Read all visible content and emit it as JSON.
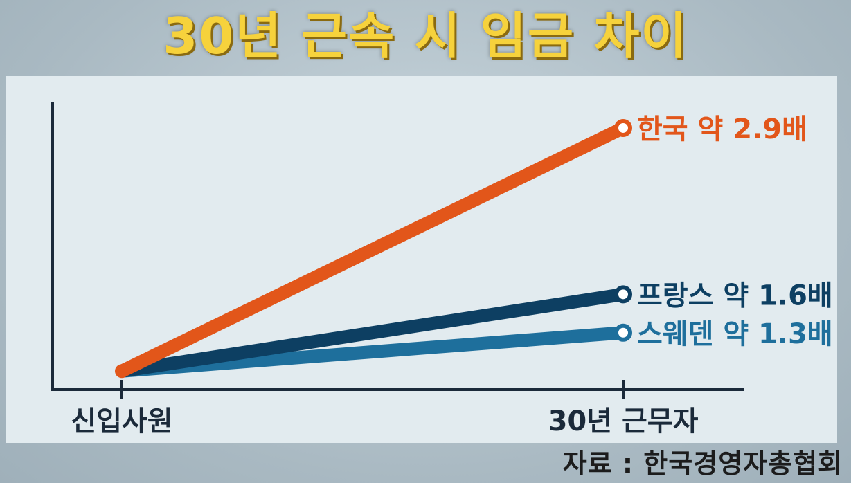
{
  "title": "30년 근속 시 임금 차이",
  "source": "자료 : 한국경영자총협회",
  "chart_data": {
    "type": "line",
    "categories": [
      "신입사원",
      "30년 근무자"
    ],
    "series": [
      {
        "name": "한국",
        "values": [
          1,
          2.9
        ],
        "label": "한국 약 2.9배",
        "color": "#e2561a"
      },
      {
        "name": "프랑스",
        "values": [
          1,
          1.6
        ],
        "label": "프랑스 약 1.6배",
        "color": "#0d3f62"
      },
      {
        "name": "스웨덴",
        "values": [
          1,
          1.3
        ],
        "label": "스웨덴 약 1.3배",
        "color": "#1e6f9c"
      }
    ],
    "ylim": [
      0.85,
      3.1
    ],
    "grid": false,
    "axis_color": "#1b2a3a"
  }
}
